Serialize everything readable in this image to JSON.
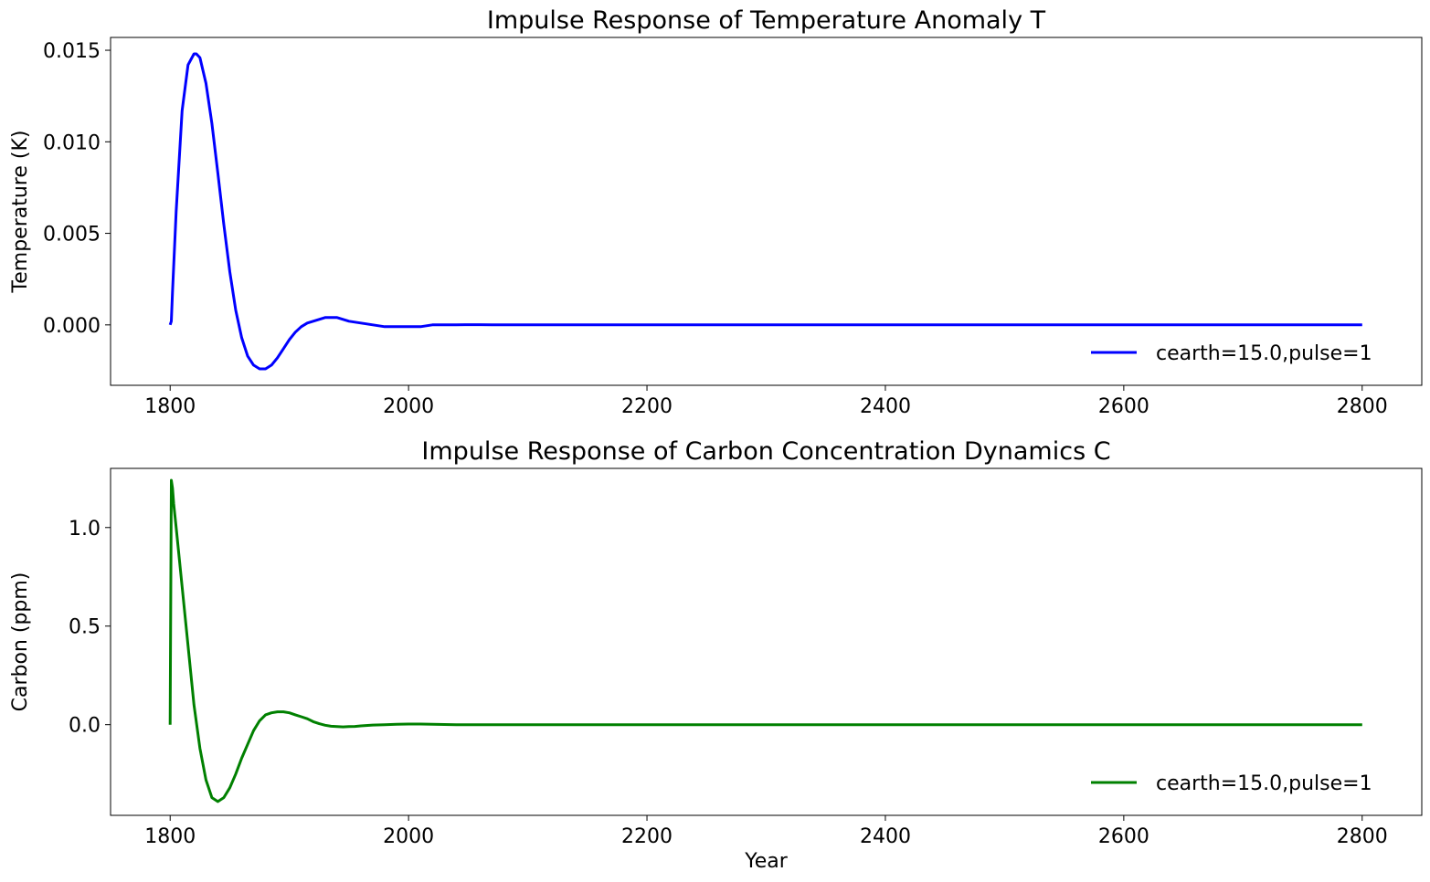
{
  "chart_data": [
    {
      "type": "line",
      "title": "Impulse Response of Temperature Anomaly T",
      "xlabel": "",
      "ylabel": "Temperature (K)",
      "xlim": [
        1750,
        2850
      ],
      "ylim": [
        -0.0033,
        0.0157
      ],
      "xticks": [
        1800,
        2000,
        2200,
        2400,
        2600,
        2800
      ],
      "xtick_labels": [
        "1800",
        "2000",
        "2200",
        "2400",
        "2600",
        "2800"
      ],
      "yticks": [
        0.0,
        0.005,
        0.01,
        0.015
      ],
      "ytick_labels": [
        "0.000",
        "0.005",
        "0.010",
        "0.015"
      ],
      "legend_position": "lower-right",
      "grid": false,
      "series": [
        {
          "name": "cearth=15.0,pulse=1",
          "color": "#0000ff",
          "x": [
            1800,
            1801,
            1802,
            1805,
            1810,
            1815,
            1820,
            1822,
            1825,
            1830,
            1835,
            1840,
            1845,
            1850,
            1855,
            1860,
            1865,
            1870,
            1875,
            1880,
            1885,
            1890,
            1895,
            1900,
            1905,
            1910,
            1915,
            1920,
            1925,
            1930,
            1935,
            1940,
            1945,
            1950,
            1960,
            1970,
            1980,
            1990,
            2000,
            2010,
            2020,
            2030,
            2040,
            2050,
            2060,
            2070,
            2100,
            2200,
            2400,
            2600,
            2800
          ],
          "y": [
            0.0,
            0.0002,
            0.0018,
            0.0062,
            0.0117,
            0.0142,
            0.0148,
            0.0148,
            0.0146,
            0.0132,
            0.011,
            0.0083,
            0.0055,
            0.0029,
            0.0008,
            -0.0007,
            -0.0017,
            -0.0022,
            -0.0024,
            -0.0024,
            -0.0022,
            -0.0018,
            -0.0013,
            -0.0008,
            -0.0004,
            -0.0001,
            0.0001,
            0.0002,
            0.0003,
            0.0004,
            0.0004,
            0.0004,
            0.0003,
            0.0002,
            0.0001,
            0.0,
            -0.0001,
            -0.0001,
            -0.0001,
            -0.0001,
            0.0,
            0.0,
            0.0,
            1e-05,
            1e-05,
            0.0,
            0.0,
            0.0,
            0.0,
            0.0,
            0.0
          ]
        }
      ]
    },
    {
      "type": "line",
      "title": "Impulse Response of Carbon Concentration Dynamics C",
      "xlabel": "Year",
      "ylabel": "Carbon (ppm)",
      "xlim": [
        1750,
        2850
      ],
      "ylim": [
        -0.46,
        1.3
      ],
      "xticks": [
        1800,
        2000,
        2200,
        2400,
        2600,
        2800
      ],
      "xtick_labels": [
        "1800",
        "2000",
        "2200",
        "2400",
        "2600",
        "2800"
      ],
      "yticks": [
        0.0,
        0.5,
        1.0
      ],
      "ytick_labels": [
        "0.0",
        "0.5",
        "1.0"
      ],
      "legend_position": "lower-right",
      "grid": false,
      "series": [
        {
          "name": "cearth=15.0,pulse=1",
          "color": "#008000",
          "x": [
            1800,
            1801,
            1802,
            1803,
            1805,
            1808,
            1810,
            1815,
            1820,
            1825,
            1830,
            1835,
            1840,
            1845,
            1850,
            1855,
            1860,
            1865,
            1870,
            1875,
            1880,
            1885,
            1890,
            1895,
            1900,
            1905,
            1910,
            1915,
            1920,
            1925,
            1930,
            1935,
            1940,
            1945,
            1950,
            1955,
            1960,
            1970,
            1980,
            1990,
            2000,
            2010,
            2020,
            2030,
            2040,
            2060,
            2100,
            2200,
            2400,
            2600,
            2800
          ],
          "y": [
            0.0,
            1.24,
            1.2,
            1.12,
            1.0,
            0.82,
            0.7,
            0.4,
            0.1,
            -0.12,
            -0.28,
            -0.37,
            -0.39,
            -0.37,
            -0.32,
            -0.25,
            -0.17,
            -0.1,
            -0.03,
            0.02,
            0.05,
            0.06,
            0.065,
            0.065,
            0.06,
            0.05,
            0.04,
            0.03,
            0.015,
            0.005,
            -0.003,
            -0.008,
            -0.01,
            -0.011,
            -0.01,
            -0.009,
            -0.006,
            -0.002,
            0.0,
            0.002,
            0.003,
            0.003,
            0.002,
            0.001,
            0.0,
            0.0,
            0.0,
            0.0,
            0.0,
            0.0,
            0.0
          ]
        }
      ]
    }
  ]
}
